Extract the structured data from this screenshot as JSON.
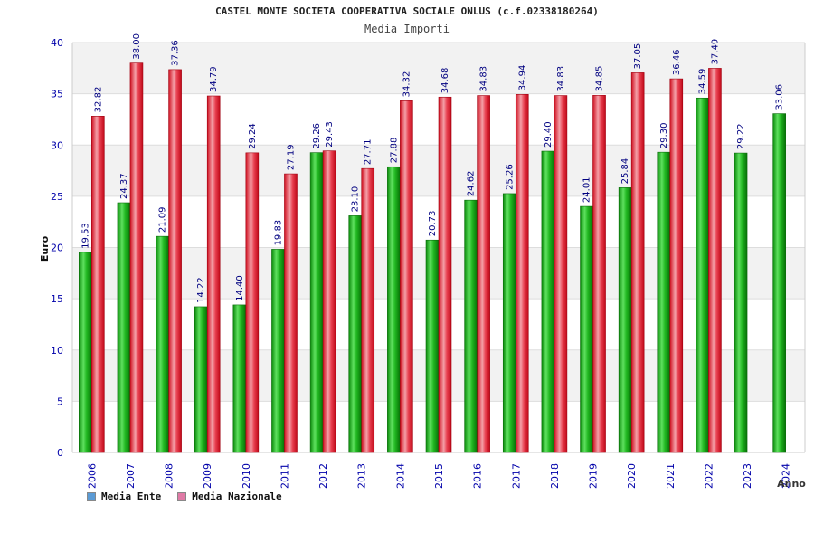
{
  "header": {
    "title": "CASTEL MONTE SOCIETA COOPERATIVA SOCIALE ONLUS (c.f.02338180264)",
    "subtitle": "Media Importi"
  },
  "legend": {
    "ente_label": "Media Ente",
    "nazionale_label": "Media Nazionale",
    "ente_color": "#5b9bd5",
    "nazionale_color": "#e07aa6"
  },
  "chart_data": {
    "type": "bar",
    "title": "Media Importi",
    "xlabel": "Anno",
    "ylabel": "Euro",
    "ylim": [
      0,
      40
    ],
    "yticks": [
      0,
      5,
      10,
      15,
      20,
      25,
      30,
      35,
      40
    ],
    "categories": [
      "2006",
      "2007",
      "2008",
      "2009",
      "2010",
      "2011",
      "2012",
      "2013",
      "2014",
      "2015",
      "2016",
      "2017",
      "2018",
      "2019",
      "2020",
      "2021",
      "2022",
      "2023",
      "2024"
    ],
    "series": [
      {
        "name": "Media Ente",
        "color": "#22aa22",
        "values": [
          19.53,
          24.37,
          21.09,
          14.22,
          14.4,
          19.83,
          29.26,
          23.1,
          27.88,
          20.73,
          24.62,
          25.26,
          29.4,
          24.01,
          25.84,
          29.3,
          34.59,
          29.22,
          33.06
        ],
        "labels": [
          "19.53",
          "24.37",
          "21.09",
          "14.22",
          "14.40",
          "19.83",
          "29.26",
          "23.10",
          "27.88",
          "20.73",
          "24.62",
          "25.26",
          "29.40",
          "24.01",
          "25.84",
          "29.30",
          "34.59",
          "29.22",
          "33.06"
        ]
      },
      {
        "name": "Media Nazionale",
        "color": "#dd2233",
        "values": [
          32.82,
          38.0,
          37.36,
          34.79,
          29.24,
          27.19,
          29.43,
          27.71,
          34.32,
          34.68,
          34.83,
          34.94,
          34.83,
          34.85,
          37.05,
          36.46,
          37.49,
          null,
          null
        ],
        "labels": [
          "32.82",
          "38.00",
          "37.36",
          "34.79",
          "29.24",
          "27.19",
          "29.43",
          "27.71",
          "34.32",
          "34.68",
          "34.83",
          "34.94",
          "34.83",
          "34.85",
          "37.05",
          "36.46",
          "37.49",
          "",
          ""
        ]
      }
    ]
  }
}
